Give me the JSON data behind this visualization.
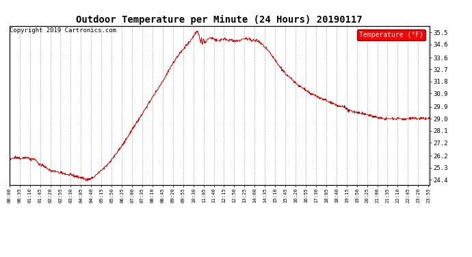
{
  "title": "Outdoor Temperature per Minute (24 Hours) 20190117",
  "copyright": "Copyright 2019 Cartronics.com",
  "legend_label": "Temperature (°F)",
  "line_color": "#cc0000",
  "background_color": "#ffffff",
  "grid_color": "#888888",
  "ylim": [
    24.0,
    36.0
  ],
  "yticks": [
    24.4,
    25.3,
    26.2,
    27.2,
    28.1,
    29.0,
    29.9,
    30.9,
    31.8,
    32.7,
    33.6,
    34.6,
    35.5
  ],
  "num_minutes": 1440,
  "title_fontsize": 10,
  "copyright_fontsize": 6.5,
  "xtick_fontsize": 5.2,
  "ytick_fontsize": 6.5
}
